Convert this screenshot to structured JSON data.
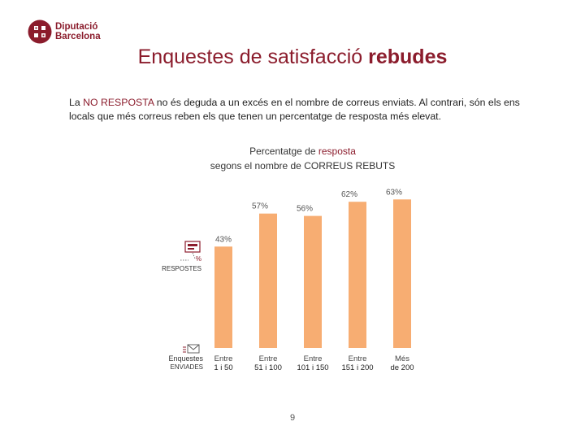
{
  "brand": {
    "line1": "Diputació",
    "line2": "Barcelona",
    "color": "#8b1c2c"
  },
  "title": {
    "regular": "Enquestes de satisfacció",
    "bold": "rebudes"
  },
  "intro": {
    "part1": "La",
    "highlight": "NO RESPOSTA",
    "part2": "no és deguda a un excés en el nombre de correus enviats. Al contrari, són els ens locals que més correus reben els que tenen un percentatge de resposta més elevat."
  },
  "legend": {
    "percent_symbol": "%",
    "responses_label": "RESPOSTES",
    "surveys_label": "Enquestes",
    "sent_label": "ENVIADES",
    "icons": [
      "responses-icon",
      "surveys-icon"
    ]
  },
  "page_number": "9",
  "colors": {
    "bar": "#f7ad72",
    "accent": "#8b1c2c"
  },
  "chart_data": {
    "type": "bar",
    "title": {
      "line1_prefix": "Percentatge de",
      "line1_highlight": "resposta",
      "line2": "segons el nombre de CORREUS REBUTS"
    },
    "ylim": [
      0,
      100
    ],
    "unit": "%",
    "categories": [
      {
        "line1": "Entre",
        "line2": "1 i 50"
      },
      {
        "line1": "Entre",
        "line2": "51 i 100"
      },
      {
        "line1": "Entre",
        "line2": "101 i 150"
      },
      {
        "line1": "Entre",
        "line2": "151 i 200"
      },
      {
        "line1": "Més",
        "line2": "de 200"
      }
    ],
    "values": [
      43,
      57,
      56,
      62,
      63
    ],
    "value_labels": [
      "43%",
      "57%",
      "56%",
      "62%",
      "63%"
    ]
  }
}
